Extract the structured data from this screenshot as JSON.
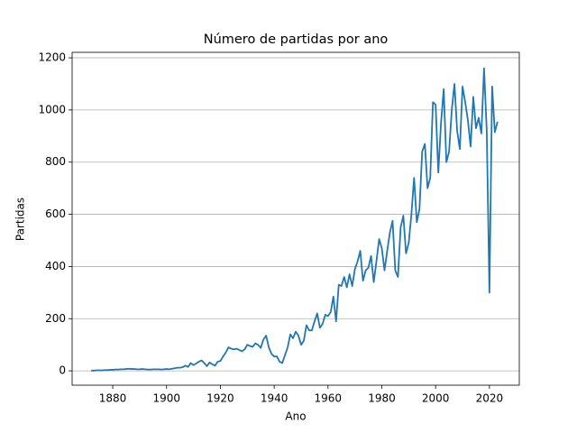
{
  "chart_data": {
    "type": "line",
    "title": "Número de partidas por ano",
    "xlabel": "Ano",
    "ylabel": "Partidas",
    "x": [
      1872,
      1873,
      1874,
      1875,
      1876,
      1877,
      1878,
      1879,
      1880,
      1881,
      1882,
      1883,
      1884,
      1885,
      1886,
      1887,
      1888,
      1889,
      1890,
      1891,
      1892,
      1893,
      1894,
      1895,
      1896,
      1897,
      1898,
      1899,
      1900,
      1901,
      1902,
      1903,
      1904,
      1905,
      1906,
      1907,
      1908,
      1909,
      1910,
      1911,
      1912,
      1913,
      1914,
      1915,
      1916,
      1917,
      1918,
      1919,
      1920,
      1921,
      1922,
      1923,
      1924,
      1925,
      1926,
      1927,
      1928,
      1929,
      1930,
      1931,
      1932,
      1933,
      1934,
      1935,
      1936,
      1937,
      1938,
      1939,
      1940,
      1941,
      1942,
      1943,
      1944,
      1945,
      1946,
      1947,
      1948,
      1949,
      1950,
      1951,
      1952,
      1953,
      1954,
      1955,
      1956,
      1957,
      1958,
      1959,
      1960,
      1961,
      1962,
      1963,
      1964,
      1965,
      1966,
      1967,
      1968,
      1969,
      1970,
      1971,
      1972,
      1973,
      1974,
      1975,
      1976,
      1977,
      1978,
      1979,
      1980,
      1981,
      1982,
      1983,
      1984,
      1985,
      1986,
      1987,
      1988,
      1989,
      1990,
      1991,
      1992,
      1993,
      1994,
      1995,
      1996,
      1997,
      1998,
      1999,
      2000,
      2001,
      2002,
      2003,
      2004,
      2005,
      2006,
      2007,
      2008,
      2009,
      2010,
      2011,
      2012,
      2013,
      2014,
      2015,
      2016,
      2017,
      2018,
      2019,
      2020,
      2021,
      2022,
      2023
    ],
    "series": [
      {
        "name": "Partidas",
        "color": "#1f77b4",
        "values": [
          1,
          1,
          2,
          2,
          2,
          3,
          3,
          4,
          4,
          5,
          5,
          6,
          6,
          7,
          8,
          7,
          7,
          6,
          6,
          7,
          6,
          5,
          5,
          6,
          6,
          6,
          5,
          6,
          7,
          6,
          8,
          10,
          12,
          12,
          14,
          20,
          15,
          30,
          22,
          28,
          35,
          40,
          30,
          18,
          32,
          25,
          20,
          35,
          38,
          55,
          70,
          90,
          85,
          82,
          85,
          80,
          75,
          82,
          100,
          95,
          92,
          105,
          100,
          88,
          120,
          135,
          90,
          65,
          55,
          55,
          35,
          30,
          60,
          90,
          140,
          125,
          150,
          135,
          100,
          115,
          175,
          155,
          155,
          190,
          220,
          165,
          180,
          215,
          210,
          225,
          285,
          190,
          330,
          325,
          360,
          320,
          370,
          325,
          390,
          420,
          460,
          345,
          385,
          395,
          440,
          340,
          420,
          505,
          470,
          385,
          460,
          530,
          575,
          385,
          360,
          550,
          595,
          450,
          490,
          600,
          740,
          570,
          620,
          840,
          870,
          700,
          740,
          1030,
          1020,
          760,
          950,
          1080,
          800,
          840,
          1000,
          1100,
          920,
          850,
          1090,
          1030,
          960,
          860,
          1050,
          930,
          970,
          910,
          1160,
          920,
          300,
          1090,
          915,
          955
        ]
      }
    ],
    "xlim": [
      1864.9,
      2031.1
    ],
    "ylim": [
      -55,
      1221
    ],
    "xticks": [
      1880,
      1900,
      1920,
      1940,
      1960,
      1980,
      2000,
      2020
    ],
    "yticks": [
      0,
      200,
      400,
      600,
      800,
      1000,
      1200
    ],
    "grid": true
  }
}
